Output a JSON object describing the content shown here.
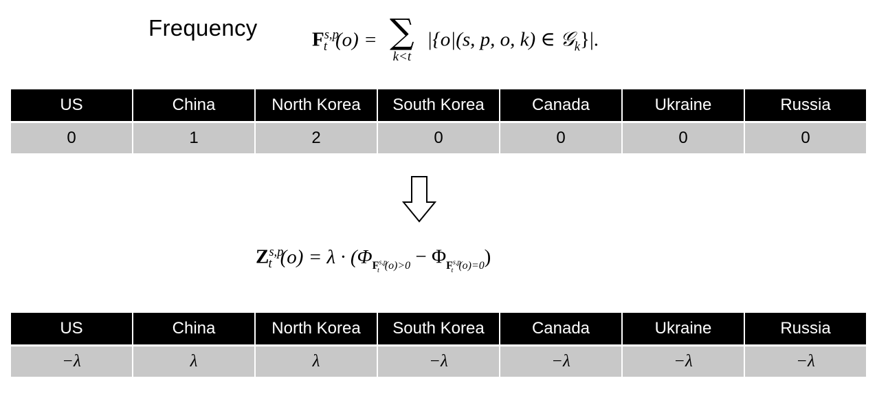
{
  "heading": {
    "label": "Frequency"
  },
  "formula_frequency": {
    "lhs": "F",
    "lhs_sup": "s,p",
    "lhs_sub": "t",
    "lhs_arg": "(o) =",
    "sum_symbol": "∑",
    "sum_index": "k<t",
    "body": "|{o|(s, p, o, k) ∈ 𝒢",
    "body_sub": "k",
    "body_end": "}|."
  },
  "formula_transform": {
    "lhs": "Z",
    "lhs_sup": "s,p",
    "lhs_sub": "t",
    "lhs_arg": "(o) = λ · (Φ",
    "phi1_sub": "F",
    "phi1_sub_sup": "s,p",
    "phi1_sub_sub": "t",
    "phi1_cond": "(o)>0",
    "minus": " − Φ",
    "phi2_sub": "F",
    "phi2_sub_sup": "s,p",
    "phi2_sub_sub": "t",
    "phi2_cond": "(o)=0",
    "close": ")"
  },
  "table_frequency": {
    "columns": [
      "US",
      "China",
      "North Korea",
      "South Korea",
      "Canada",
      "Ukraine",
      "Russia"
    ],
    "values": [
      "0",
      "1",
      "2",
      "0",
      "0",
      "0",
      "0"
    ]
  },
  "table_transformed": {
    "columns": [
      "US",
      "China",
      "North Korea",
      "South Korea",
      "Canada",
      "Ukraine",
      "Russia"
    ],
    "values": [
      "−λ",
      "λ",
      "λ",
      "−λ",
      "−λ",
      "−λ",
      "−λ"
    ]
  },
  "arrow": {
    "icon": "down-arrow-icon"
  }
}
